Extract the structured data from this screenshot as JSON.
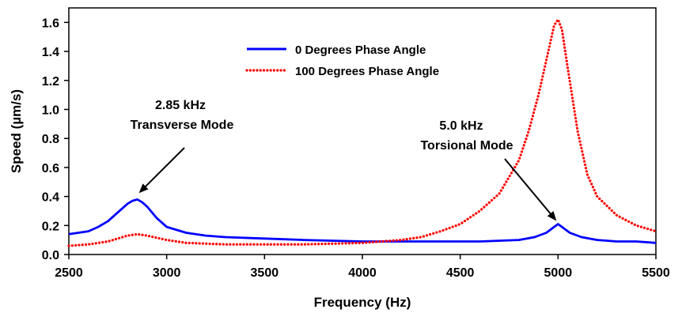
{
  "chart_data": {
    "type": "line",
    "title": "",
    "xlabel": "Frequency (Hz)",
    "ylabel": "Speed (µm/s)",
    "xlim": [
      2500,
      5500
    ],
    "ylim": [
      0.0,
      1.7
    ],
    "xticks": [
      "2500",
      "3000",
      "3500",
      "4000",
      "4500",
      "5000",
      "5500"
    ],
    "yticks": [
      "0.0",
      "0.2",
      "0.4",
      "0.6",
      "0.8",
      "1.0",
      "1.2",
      "1.4",
      "1.6"
    ],
    "grid": false,
    "legend_position": "top-center",
    "series": [
      {
        "name": "0 Degrees Phase Angle",
        "color": "#0000ff",
        "style": "solid",
        "x": [
          2500,
          2600,
          2650,
          2700,
          2750,
          2800,
          2825,
          2850,
          2875,
          2900,
          2950,
          3000,
          3100,
          3200,
          3300,
          3500,
          3700,
          4000,
          4200,
          4400,
          4600,
          4800,
          4880,
          4940,
          4980,
          5000,
          5020,
          5060,
          5120,
          5200,
          5300,
          5400,
          5500
        ],
        "y": [
          0.14,
          0.16,
          0.19,
          0.23,
          0.29,
          0.35,
          0.37,
          0.38,
          0.36,
          0.33,
          0.25,
          0.19,
          0.15,
          0.13,
          0.12,
          0.11,
          0.1,
          0.09,
          0.09,
          0.09,
          0.09,
          0.1,
          0.12,
          0.15,
          0.19,
          0.21,
          0.19,
          0.15,
          0.12,
          0.1,
          0.09,
          0.09,
          0.08
        ]
      },
      {
        "name": "100 Degrees Phase Angle",
        "color": "#ff0000",
        "style": "dotted",
        "x": [
          2500,
          2600,
          2700,
          2800,
          2850,
          2900,
          3000,
          3100,
          3300,
          3500,
          3700,
          4000,
          4200,
          4300,
          4400,
          4500,
          4600,
          4700,
          4800,
          4850,
          4900,
          4950,
          4980,
          5000,
          5020,
          5050,
          5100,
          5150,
          5200,
          5300,
          5400,
          5500
        ],
        "y": [
          0.06,
          0.07,
          0.09,
          0.13,
          0.14,
          0.13,
          0.1,
          0.08,
          0.07,
          0.07,
          0.07,
          0.08,
          0.1,
          0.12,
          0.16,
          0.21,
          0.3,
          0.42,
          0.65,
          0.85,
          1.1,
          1.4,
          1.58,
          1.62,
          1.55,
          1.28,
          0.85,
          0.55,
          0.4,
          0.27,
          0.2,
          0.16
        ]
      }
    ],
    "annotations": [
      {
        "line1": "2.85 kHz",
        "line2": "Transverse Mode",
        "x": 2850,
        "y": 0.38
      },
      {
        "line1": "5.0 kHz",
        "line2": "Torsional Mode",
        "x": 5000,
        "y": 0.21
      }
    ]
  }
}
